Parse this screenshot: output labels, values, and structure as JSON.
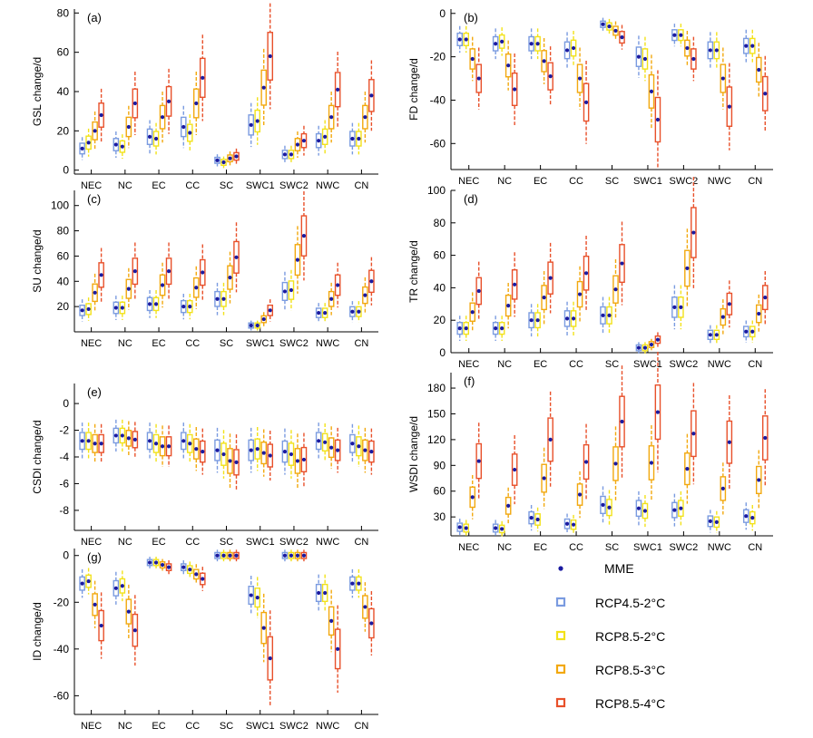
{
  "colors": {
    "mme": "#1a1aa0",
    "scenarios": [
      "#7a9be0",
      "#f2e21a",
      "#f2a80e",
      "#e8502a"
    ]
  },
  "legend": {
    "mme": "MME",
    "items": [
      "RCP4.5-2°C",
      "RCP8.5-2°C",
      "RCP8.5-3°C",
      "RCP8.5-4°C"
    ]
  },
  "chart_data": [
    {
      "id": "a",
      "type": "box",
      "panel_label": "(a)",
      "ylabel": "GSL change/d",
      "categories": [
        "NEC",
        "NC",
        "EC",
        "CC",
        "SC",
        "SWC1",
        "SWC2",
        "NWC",
        "CN"
      ],
      "ylim": [
        -2,
        82
      ],
      "yticks": [
        0,
        20,
        40,
        60,
        80
      ],
      "mme": [
        [
          11,
          14,
          20,
          28
        ],
        [
          13,
          12,
          22,
          34
        ],
        [
          17,
          16,
          27,
          35
        ],
        [
          22,
          19,
          34,
          47
        ],
        [
          5,
          4,
          6,
          7
        ],
        [
          23,
          25,
          42,
          58
        ],
        [
          8,
          8,
          13,
          15
        ],
        [
          15,
          17,
          27,
          41
        ],
        [
          16,
          16,
          27,
          38
        ]
      ]
    },
    {
      "id": "b",
      "type": "box",
      "panel_label": "(b)",
      "ylabel": "FD change/d",
      "categories": [
        "NEC",
        "NC",
        "EC",
        "CC",
        "SC",
        "SWC1",
        "SWC2",
        "NWC",
        "CN"
      ],
      "ylim": [
        -72,
        2
      ],
      "yticks": [
        0,
        -20,
        -40,
        -60
      ],
      "mme": [
        [
          -12,
          -12,
          -21,
          -30
        ],
        [
          -14,
          -13,
          -24,
          -35
        ],
        [
          -14,
          -14,
          -22,
          -29
        ],
        [
          -17,
          -16,
          -30,
          -41
        ],
        [
          -5,
          -6,
          -8,
          -11
        ],
        [
          -20,
          -21,
          -36,
          -49
        ],
        [
          -10,
          -10,
          -16,
          -21
        ],
        [
          -17,
          -17,
          -30,
          -43
        ],
        [
          -15,
          -15,
          -26,
          -37
        ]
      ]
    },
    {
      "id": "c",
      "type": "box",
      "panel_label": "(c)",
      "ylabel": "SU change/d",
      "categories": [
        "NEC",
        "NC",
        "EC",
        "CC",
        "SC",
        "SWC1",
        "SWC2",
        "NWC",
        "CN"
      ],
      "ylim": [
        0,
        112
      ],
      "yticks": [
        20,
        40,
        60,
        80,
        100
      ],
      "mme": [
        [
          17,
          18,
          31,
          45
        ],
        [
          19,
          19,
          34,
          48
        ],
        [
          22,
          22,
          37,
          48
        ],
        [
          20,
          20,
          35,
          47
        ],
        [
          26,
          26,
          43,
          59
        ],
        [
          5,
          5,
          10,
          17
        ],
        [
          32,
          33,
          57,
          76
        ],
        [
          15,
          15,
          26,
          37
        ],
        [
          16,
          16,
          29,
          40
        ]
      ]
    },
    {
      "id": "d",
      "type": "box",
      "panel_label": "(d)",
      "ylabel": "TR change/d",
      "categories": [
        "NEC",
        "NC",
        "EC",
        "CC",
        "SC",
        "SWC1",
        "SWC2",
        "NWC",
        "CN"
      ],
      "ylim": [
        0,
        100
      ],
      "yticks": [
        0,
        20,
        40,
        60,
        80,
        100
      ],
      "mme": [
        [
          15,
          15,
          25,
          38
        ],
        [
          15,
          15,
          29,
          42
        ],
        [
          20,
          20,
          34,
          46
        ],
        [
          21,
          21,
          36,
          49
        ],
        [
          23,
          23,
          39,
          55
        ],
        [
          3,
          3,
          5,
          8
        ],
        [
          28,
          28,
          52,
          74
        ],
        [
          11,
          11,
          22,
          30
        ],
        [
          13,
          13,
          24,
          34
        ]
      ]
    },
    {
      "id": "e",
      "type": "box",
      "panel_label": "(e)",
      "ylabel": "CSDI change/d",
      "categories": [
        "NEC",
        "NC",
        "EC",
        "CC",
        "SC",
        "SWC1",
        "SWC2",
        "NWC",
        "CN"
      ],
      "ylim": [
        -9.5,
        1.5
      ],
      "yticks": [
        0,
        -2,
        -4,
        -6,
        -8
      ],
      "mme": [
        [
          -2.8,
          -2.8,
          -3.0,
          -3.0
        ],
        [
          -2.4,
          -2.4,
          -2.6,
          -2.7
        ],
        [
          -2.8,
          -3.0,
          -3.2,
          -3.2
        ],
        [
          -2.8,
          -3.0,
          -3.4,
          -3.6
        ],
        [
          -3.5,
          -3.8,
          -4.3,
          -4.4
        ],
        [
          -3.5,
          -3.4,
          -3.7,
          -3.9
        ],
        [
          -3.6,
          -3.8,
          -4.3,
          -4.2
        ],
        [
          -2.8,
          -2.9,
          -3.3,
          -3.5
        ],
        [
          -3.0,
          -3.2,
          -3.5,
          -3.6
        ]
      ]
    },
    {
      "id": "f",
      "type": "box",
      "panel_label": "(f)",
      "ylabel": "WSDI change/d",
      "categories": [
        "NEC",
        "NC",
        "EC",
        "CC",
        "SC",
        "SWC1",
        "SWC2",
        "NWC",
        "CN"
      ],
      "ylim": [
        8,
        198
      ],
      "yticks": [
        30,
        60,
        90,
        120,
        150,
        180
      ],
      "mme": [
        [
          18,
          17,
          53,
          95
        ],
        [
          17,
          16,
          43,
          85
        ],
        [
          29,
          27,
          75,
          120
        ],
        [
          22,
          21,
          56,
          94
        ],
        [
          44,
          41,
          92,
          141
        ],
        [
          40,
          37,
          93,
          152
        ],
        [
          38,
          40,
          86,
          127
        ],
        [
          25,
          24,
          63,
          117
        ],
        [
          31,
          29,
          73,
          122
        ]
      ]
    },
    {
      "id": "g",
      "type": "box",
      "panel_label": "(g)",
      "ylabel": "ID change/d",
      "categories": [
        "NEC",
        "NC",
        "EC",
        "CC",
        "SC",
        "SWC1",
        "SWC2",
        "NWC",
        "CN"
      ],
      "ylim": [
        -68,
        3
      ],
      "yticks": [
        0,
        -20,
        -40,
        -60
      ],
      "mme": [
        [
          -12,
          -11,
          -21,
          -30
        ],
        [
          -14,
          -13,
          -24,
          -32
        ],
        [
          -3,
          -3,
          -4,
          -5
        ],
        [
          -5,
          -6,
          -8,
          -10
        ],
        [
          0,
          0,
          0,
          0
        ],
        [
          -17,
          -18,
          -31,
          -44
        ],
        [
          0,
          0,
          0,
          0
        ],
        [
          -16,
          -16,
          -28,
          -40
        ],
        [
          -12,
          -12,
          -22,
          -29
        ]
      ]
    }
  ]
}
